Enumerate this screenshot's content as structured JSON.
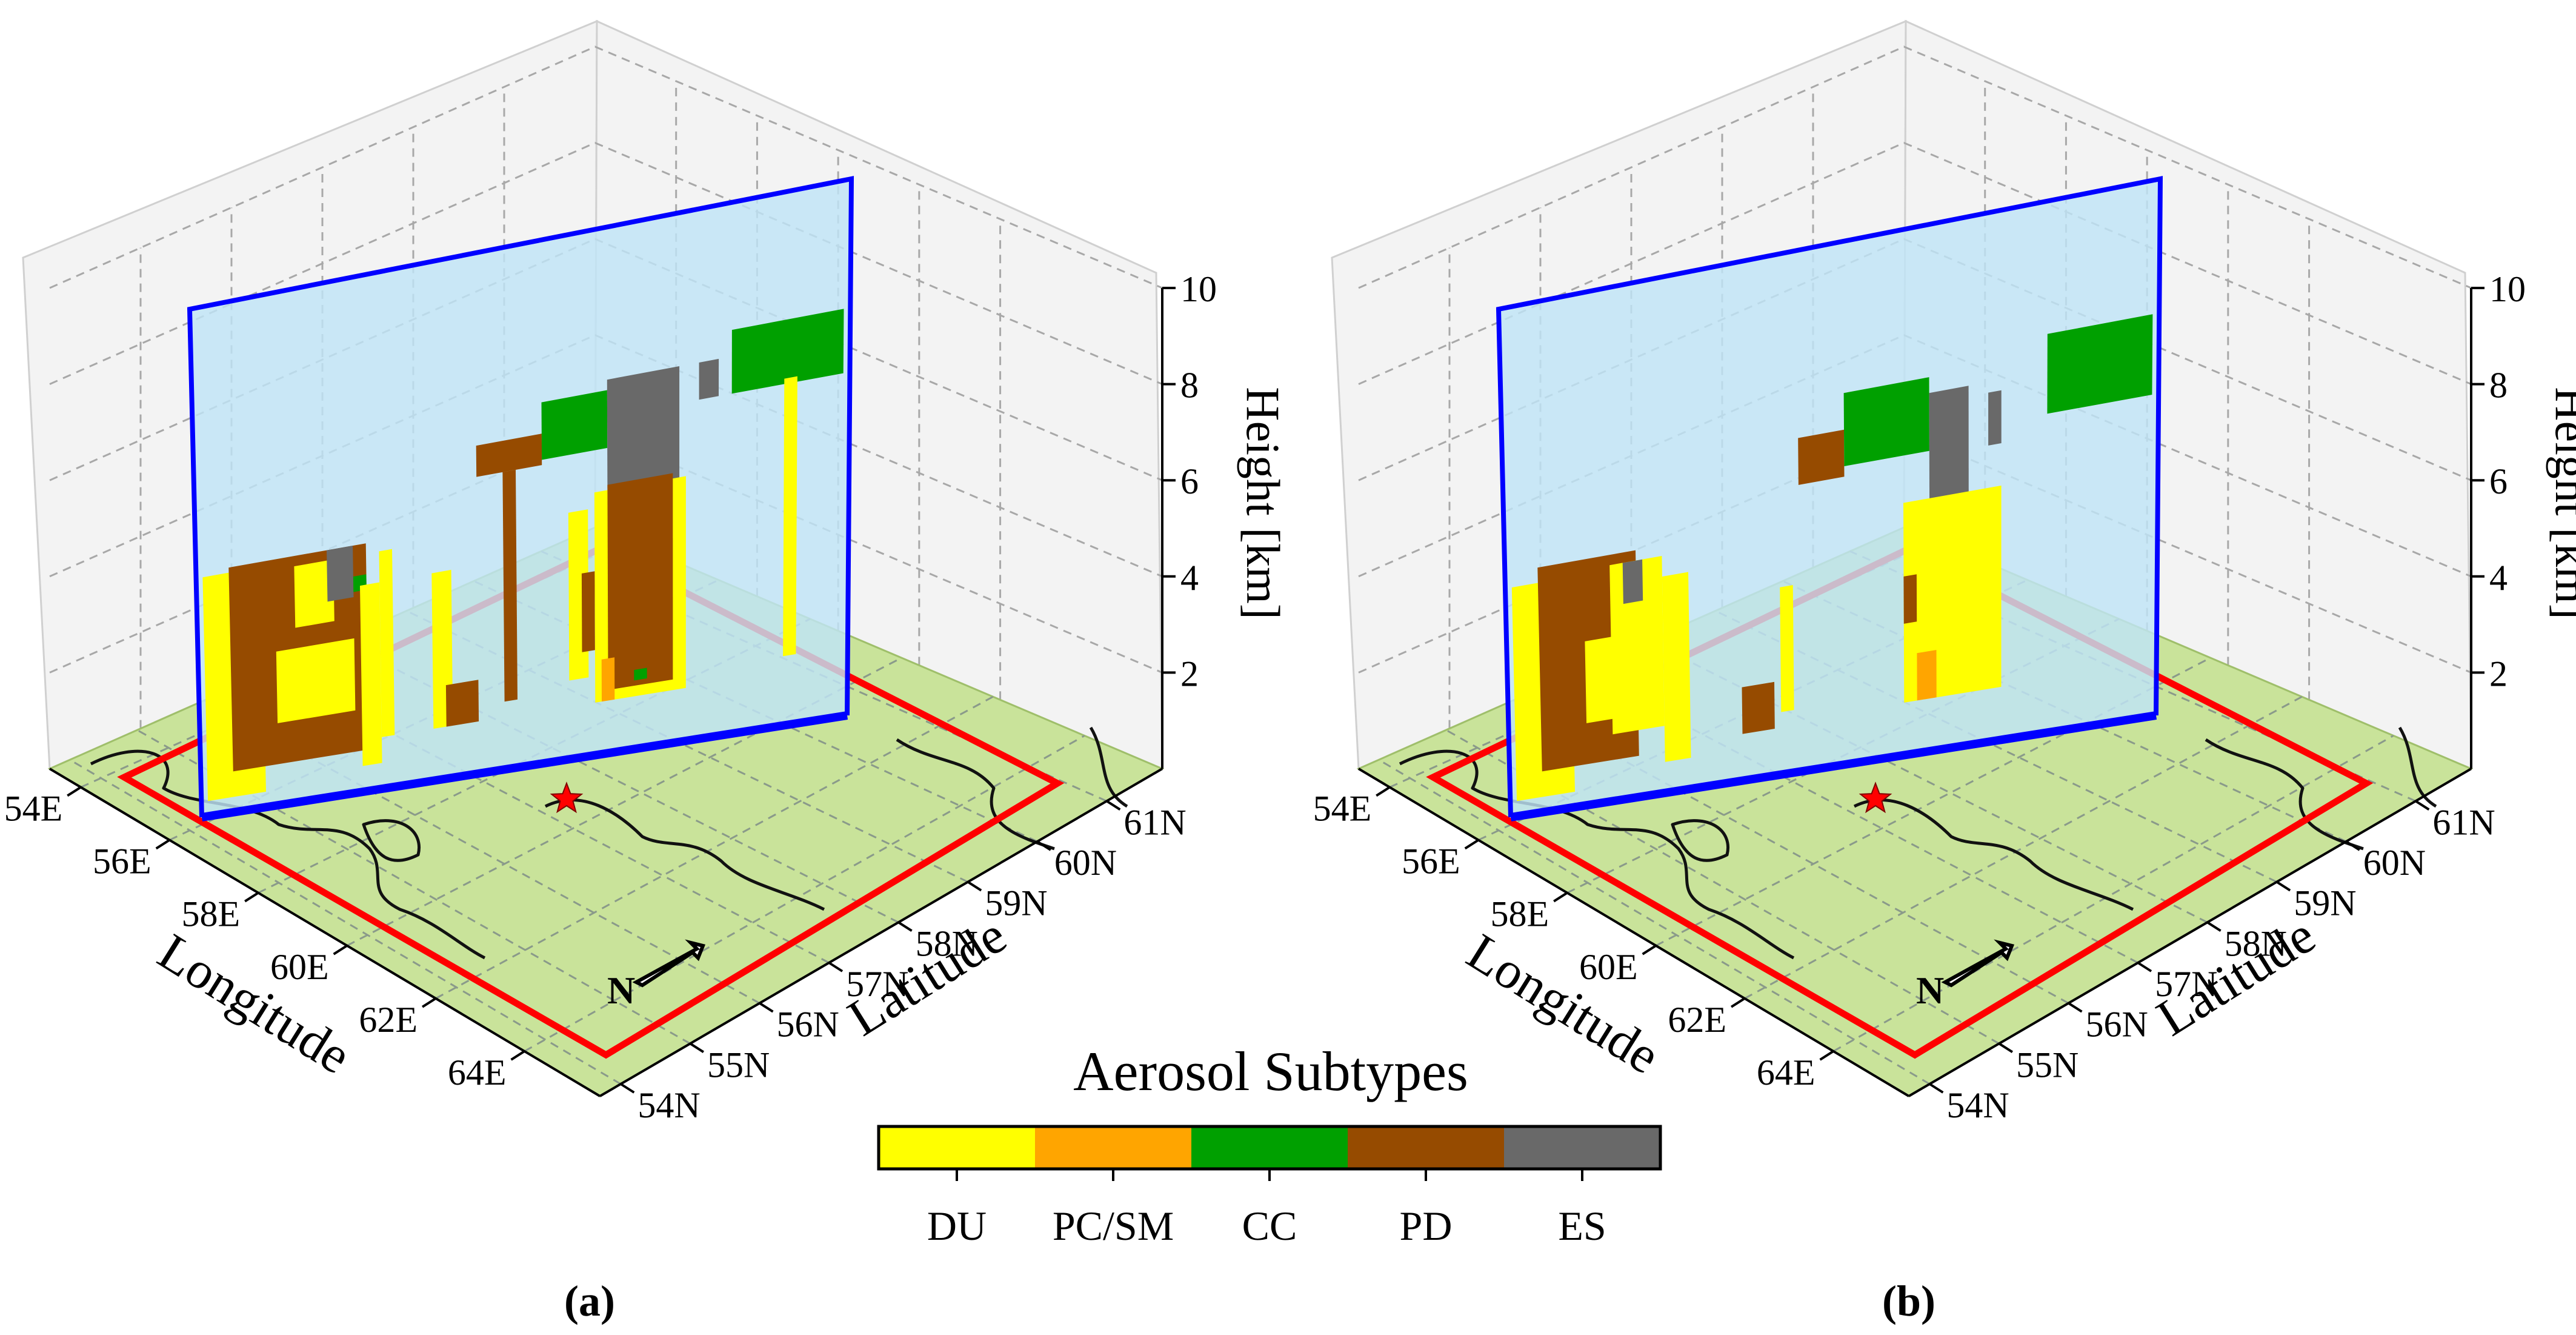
{
  "figure": {
    "colorbar_title": "Aerosol Subtypes",
    "colorbar_categories": [
      {
        "label": "DU",
        "color": "#ffff00"
      },
      {
        "label": "PC/SM",
        "color": "#ffa500"
      },
      {
        "label": "CC",
        "color": "#00a000"
      },
      {
        "label": "PD",
        "color": "#964b00"
      },
      {
        "label": "ES",
        "color": "#696969"
      }
    ],
    "colors": {
      "ground": "#c9e39a",
      "curtain_fill": "#bfe4f6",
      "curtain_edge": "#0000ff",
      "region_box": "#ff0000",
      "grid_line": "#a8a8a8",
      "pane": "#f3f3f3",
      "star": "#ff0000",
      "coast": "#111111"
    },
    "north_label": "N"
  },
  "chart_data": [
    {
      "type": "3d-curtain",
      "panel_label": "(a)",
      "xlabel": "Longitude",
      "ylabel": "Latitude",
      "zlabel": "Height [km]",
      "x_ticks": [
        "54E",
        "56E",
        "58E",
        "60E",
        "62E",
        "64E"
      ],
      "y_ticks": [
        "54N",
        "55N",
        "56N",
        "57N",
        "58N",
        "59N",
        "60N",
        "61N"
      ],
      "z_ticks": [
        "2",
        "4",
        "6",
        "8",
        "10"
      ],
      "xlim": [
        54,
        65.5
      ],
      "ylim": [
        54,
        61.5
      ],
      "zlim": [
        0,
        10
      ],
      "curtain_top_km": 10,
      "segments": [
        {
          "type": "DU",
          "x0": 0.01,
          "x1": 0.1,
          "z0": 0.3,
          "z1": 4.7
        },
        {
          "type": "PD",
          "x0": 0.05,
          "x1": 0.26,
          "z0": 0.8,
          "z1": 4.8
        },
        {
          "type": "DU",
          "x0": 0.12,
          "x1": 0.24,
          "z0": 1.6,
          "z1": 3.0
        },
        {
          "type": "DU",
          "x0": 0.15,
          "x1": 0.21,
          "z0": 3.4,
          "z1": 4.6
        },
        {
          "type": "ES",
          "x0": 0.2,
          "x1": 0.24,
          "z0": 3.8,
          "z1": 4.8
        },
        {
          "type": "CC",
          "x0": 0.24,
          "x1": 0.26,
          "z0": 3.9,
          "z1": 4.2
        },
        {
          "type": "DU",
          "x0": 0.25,
          "x1": 0.28,
          "z0": 0.5,
          "z1": 4.0
        },
        {
          "type": "DU",
          "x0": 0.28,
          "x1": 0.3,
          "z0": 1.0,
          "z1": 4.6
        },
        {
          "type": "DU",
          "x0": 0.36,
          "x1": 0.39,
          "z0": 1.0,
          "z1": 4.0
        },
        {
          "type": "PD",
          "x0": 0.38,
          "x1": 0.43,
          "z0": 1.0,
          "z1": 1.8
        },
        {
          "type": "PD",
          "x0": 0.43,
          "x1": 0.53,
          "z0": 5.7,
          "z1": 6.3
        },
        {
          "type": "PD",
          "x0": 0.47,
          "x1": 0.49,
          "z0": 1.3,
          "z1": 5.7
        },
        {
          "type": "CC",
          "x0": 0.53,
          "x1": 0.63,
          "z0": 5.8,
          "z1": 6.9
        },
        {
          "type": "ES",
          "x0": 0.63,
          "x1": 0.74,
          "z0": 4.8,
          "z1": 7.1
        },
        {
          "type": "DU",
          "x0": 0.57,
          "x1": 0.6,
          "z0": 1.5,
          "z1": 4.7
        },
        {
          "type": "PD",
          "x0": 0.59,
          "x1": 0.61,
          "z0": 2.0,
          "z1": 3.5
        },
        {
          "type": "DU",
          "x0": 0.61,
          "x1": 0.75,
          "z0": 1.0,
          "z1": 5.0
        },
        {
          "type": "PD",
          "x0": 0.63,
          "x1": 0.73,
          "z0": 1.2,
          "z1": 5.1
        },
        {
          "type": "PC/SM",
          "x0": 0.62,
          "x1": 0.64,
          "z0": 1.0,
          "z1": 1.8
        },
        {
          "type": "CC",
          "x0": 0.67,
          "x1": 0.69,
          "z0": 1.3,
          "z1": 1.5
        },
        {
          "type": "ES",
          "x0": 0.77,
          "x1": 0.8,
          "z0": 6.4,
          "z1": 7.1
        },
        {
          "type": "CC",
          "x0": 0.82,
          "x1": 0.99,
          "z0": 6.4,
          "z1": 7.6
        },
        {
          "type": "DU",
          "x0": 0.9,
          "x1": 0.92,
          "z0": 1.3,
          "z1": 6.5
        }
      ]
    },
    {
      "type": "3d-curtain",
      "panel_label": "(b)",
      "xlabel": "Longitude",
      "ylabel": "Latitude",
      "zlabel": "Height [km]",
      "x_ticks": [
        "54E",
        "56E",
        "58E",
        "60E",
        "62E",
        "64E"
      ],
      "y_ticks": [
        "54N",
        "55N",
        "56N",
        "57N",
        "58N",
        "59N",
        "60N",
        "61N"
      ],
      "z_ticks": [
        "2",
        "4",
        "6",
        "8",
        "10"
      ],
      "xlim": [
        54,
        65.5
      ],
      "ylim": [
        54,
        61.5
      ],
      "zlim": [
        0,
        10
      ],
      "curtain_top_km": 10,
      "segments": [
        {
          "type": "DU",
          "x0": 0.01,
          "x1": 0.1,
          "z0": 0.3,
          "z1": 4.5
        },
        {
          "type": "PD",
          "x0": 0.05,
          "x1": 0.2,
          "z0": 0.8,
          "z1": 4.8
        },
        {
          "type": "DU",
          "x0": 0.16,
          "x1": 0.24,
          "z0": 1.3,
          "z1": 4.6
        },
        {
          "type": "ES",
          "x0": 0.18,
          "x1": 0.21,
          "z0": 3.8,
          "z1": 4.6
        },
        {
          "type": "DU",
          "x0": 0.12,
          "x1": 0.18,
          "z0": 1.6,
          "z1": 3.2
        },
        {
          "type": "DU",
          "x0": 0.24,
          "x1": 0.28,
          "z0": 0.6,
          "z1": 4.2
        },
        {
          "type": "PD",
          "x0": 0.36,
          "x1": 0.41,
          "z0": 0.9,
          "z1": 1.8
        },
        {
          "type": "DU",
          "x0": 0.42,
          "x1": 0.44,
          "z0": 1.2,
          "z1": 3.6
        },
        {
          "type": "PD",
          "x0": 0.45,
          "x1": 0.52,
          "z0": 5.5,
          "z1": 6.4
        },
        {
          "type": "CC",
          "x0": 0.52,
          "x1": 0.65,
          "z0": 5.7,
          "z1": 7.1
        },
        {
          "type": "ES",
          "x0": 0.65,
          "x1": 0.71,
          "z0": 4.5,
          "z1": 6.8
        },
        {
          "type": "ES",
          "x0": 0.74,
          "x1": 0.76,
          "z0": 5.6,
          "z1": 6.6
        },
        {
          "type": "DU",
          "x0": 0.61,
          "x1": 0.76,
          "z0": 1.0,
          "z1": 4.8
        },
        {
          "type": "PC/SM",
          "x0": 0.63,
          "x1": 0.66,
          "z0": 1.0,
          "z1": 1.9
        },
        {
          "type": "PD",
          "x0": 0.61,
          "x1": 0.63,
          "z0": 2.5,
          "z1": 3.4
        },
        {
          "type": "CC",
          "x0": 0.83,
          "x1": 0.99,
          "z0": 6.0,
          "z1": 7.5
        }
      ]
    }
  ]
}
